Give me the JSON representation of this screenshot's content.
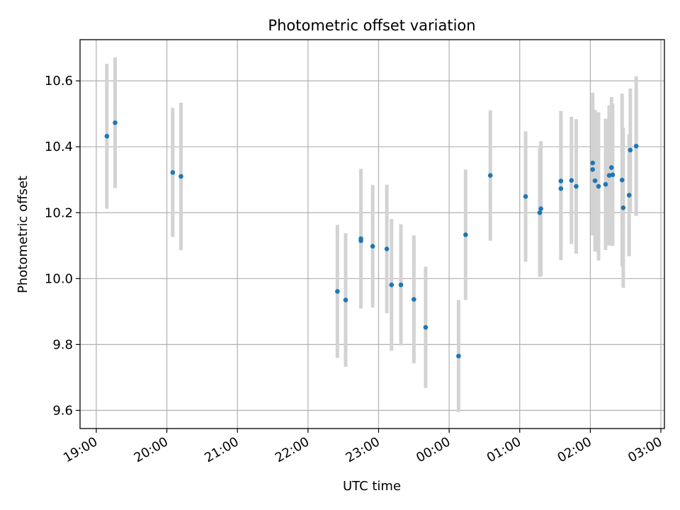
{
  "chart_data": {
    "type": "scatter",
    "title": "Photometric offset variation",
    "xlabel": "UTC time",
    "ylabel": "Photometric offset",
    "x_tick_labels": [
      "19:00",
      "20:00",
      "21:00",
      "22:00",
      "23:00",
      "00:00",
      "01:00",
      "02:00",
      "03:00"
    ],
    "x_tick_hours": [
      19,
      20,
      21,
      22,
      23,
      24,
      25,
      26,
      27
    ],
    "xlim_hours": [
      18.77,
      27.05
    ],
    "y_ticks": [
      9.6,
      9.8,
      10.0,
      10.2,
      10.4,
      10.6
    ],
    "y_tick_labels": [
      "9.6",
      "9.8",
      "10.0",
      "10.2",
      "10.4",
      "10.6"
    ],
    "ylim": [
      9.545,
      10.725
    ],
    "grid": true,
    "legend": "none",
    "colors": {
      "point": "#1f77b4",
      "errorbar": "#d3d3d3",
      "grid": "#b0b0b0",
      "axes": "#000000"
    },
    "series": [
      {
        "points": [
          {
            "time": "19:09",
            "y": 10.432,
            "yerr_low": 10.212,
            "yerr_high": 10.652
          },
          {
            "time": "19:16",
            "y": 10.473,
            "yerr_low": 10.275,
            "yerr_high": 10.671
          },
          {
            "time": "20:05",
            "y": 10.322,
            "yerr_low": 10.126,
            "yerr_high": 10.518
          },
          {
            "time": "20:12",
            "y": 10.31,
            "yerr_low": 10.086,
            "yerr_high": 10.534
          },
          {
            "time": "22:25",
            "y": 9.961,
            "yerr_low": 9.759,
            "yerr_high": 10.163
          },
          {
            "time": "22:32",
            "y": 9.935,
            "yerr_low": 9.732,
            "yerr_high": 10.138
          },
          {
            "time": "22:45",
            "y": 10.121,
            "yerr_low": 9.909,
            "yerr_high": 10.333
          },
          {
            "time": "22:45",
            "y": 10.115,
            "yerr_low": 9.912,
            "yerr_high": 10.318
          },
          {
            "time": "22:55",
            "y": 10.098,
            "yerr_low": 9.912,
            "yerr_high": 10.284
          },
          {
            "time": "23:07",
            "y": 10.09,
            "yerr_low": 9.895,
            "yerr_high": 10.285
          },
          {
            "time": "23:11",
            "y": 9.981,
            "yerr_low": 9.781,
            "yerr_high": 10.181
          },
          {
            "time": "23:19",
            "y": 9.981,
            "yerr_low": 9.797,
            "yerr_high": 10.165
          },
          {
            "time": "23:30",
            "y": 9.937,
            "yerr_low": 9.743,
            "yerr_high": 10.131
          },
          {
            "time": "23:40",
            "y": 9.852,
            "yerr_low": 9.668,
            "yerr_high": 10.036
          },
          {
            "time": "00:08",
            "y": 9.765,
            "yerr_low": 9.595,
            "yerr_high": 9.935
          },
          {
            "time": "00:14",
            "y": 10.133,
            "yerr_low": 9.935,
            "yerr_high": 10.331
          },
          {
            "time": "00:35",
            "y": 10.313,
            "yerr_low": 10.115,
            "yerr_high": 10.511
          },
          {
            "time": "01:05",
            "y": 10.249,
            "yerr_low": 10.051,
            "yerr_high": 10.447
          },
          {
            "time": "01:17",
            "y": 10.2,
            "yerr_low": 10.005,
            "yerr_high": 10.395
          },
          {
            "time": "01:18",
            "y": 10.212,
            "yerr_low": 10.007,
            "yerr_high": 10.417
          },
          {
            "time": "01:35",
            "y": 10.273,
            "yerr_low": 10.056,
            "yerr_high": 10.49
          },
          {
            "time": "01:35",
            "y": 10.296,
            "yerr_low": 10.083,
            "yerr_high": 10.509
          },
          {
            "time": "01:44",
            "y": 10.298,
            "yerr_low": 10.105,
            "yerr_high": 10.491
          },
          {
            "time": "01:48",
            "y": 10.28,
            "yerr_low": 10.076,
            "yerr_high": 10.484
          },
          {
            "time": "02:02",
            "y": 10.331,
            "yerr_low": 10.131,
            "yerr_high": 10.531
          },
          {
            "time": "02:02",
            "y": 10.351,
            "yerr_low": 10.138,
            "yerr_high": 10.564
          },
          {
            "time": "02:04",
            "y": 10.297,
            "yerr_low": 10.082,
            "yerr_high": 10.512
          },
          {
            "time": "02:07",
            "y": 10.28,
            "yerr_low": 10.055,
            "yerr_high": 10.505
          },
          {
            "time": "02:13",
            "y": 10.286,
            "yerr_low": 10.087,
            "yerr_high": 10.485
          },
          {
            "time": "02:16",
            "y": 10.313,
            "yerr_low": 10.1,
            "yerr_high": 10.526
          },
          {
            "time": "02:18",
            "y": 10.337,
            "yerr_low": 10.123,
            "yerr_high": 10.551
          },
          {
            "time": "02:19",
            "y": 10.315,
            "yerr_low": 10.099,
            "yerr_high": 10.531
          },
          {
            "time": "02:27",
            "y": 10.299,
            "yerr_low": 10.037,
            "yerr_high": 10.561
          },
          {
            "time": "02:28",
            "y": 10.215,
            "yerr_low": 9.972,
            "yerr_high": 10.458
          },
          {
            "time": "02:33",
            "y": 10.253,
            "yerr_low": 10.068,
            "yerr_high": 10.438
          },
          {
            "time": "02:34",
            "y": 10.39,
            "yerr_low": 10.203,
            "yerr_high": 10.577
          },
          {
            "time": "02:39",
            "y": 10.402,
            "yerr_low": 10.19,
            "yerr_high": 10.614
          }
        ]
      }
    ]
  }
}
